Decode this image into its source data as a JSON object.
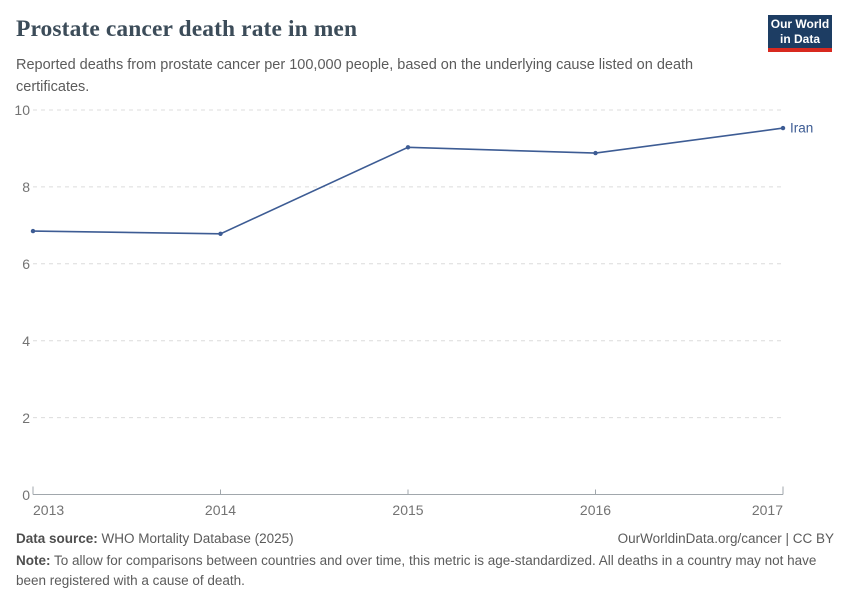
{
  "header": {
    "title": "Prostate cancer death rate in men",
    "subtitle": "Reported deaths from prostate cancer per 100,000 people, based on the underlying cause listed on death certificates."
  },
  "logo": {
    "line1": "Our World",
    "line2": "in Data",
    "bg_color": "#1d3d63",
    "accent_color": "#d8291f"
  },
  "chart_data": {
    "type": "line",
    "title": "Prostate cancer death rate in men",
    "x": [
      "2013",
      "2014",
      "2015",
      "2016",
      "2017"
    ],
    "series": [
      {
        "name": "Iran",
        "values": [
          6.85,
          6.78,
          9.03,
          8.88,
          9.53
        ]
      }
    ],
    "line_color": "#3d5c94",
    "ylim": [
      0,
      10
    ],
    "yticks": [
      0,
      2,
      4,
      6,
      8,
      10
    ],
    "xlabel": "",
    "ylabel": "",
    "grid": "horizontal-dashed",
    "legend_position": "line-end-label"
  },
  "footer": {
    "data_source_label": "Data source:",
    "data_source_value": "WHO Mortality Database (2025)",
    "attribution": "OurWorldinData.org/cancer | CC BY",
    "note_label": "Note:",
    "note_text": "To allow for comparisons between countries and over time, this metric is age-standardized. All deaths in a country may not have been registered with a cause of death."
  }
}
